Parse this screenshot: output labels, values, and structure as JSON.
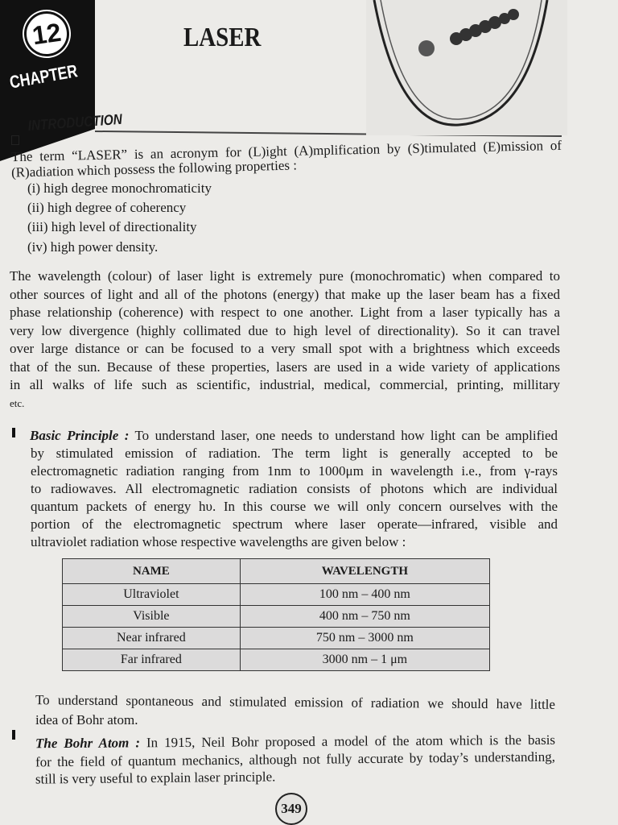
{
  "header": {
    "chapter_number": "12",
    "chapter_label": "CHAPTER",
    "title": "LASER"
  },
  "intro": {
    "heading": "INTRODUCTION",
    "lines": [
      "The term “LASER” is an acronym for (L)ight (A)mplification by (S)timulated (E)mission of",
      "(R)adiation which possess the following properties :"
    ],
    "properties": [
      "(i) high degree monochromaticity",
      "(ii) high degree of coherency",
      "(iii) high level of directionality",
      "(iv) high power density."
    ]
  },
  "para2": [
    "The wavelength (colour) of laser light is extremely pure (monochromatic) when compared to",
    "other sources of light and all of the photons (energy) that make up the laser beam has a fixed",
    "phase relationship (coherence) with respect to one another. Light from a laser typically has a",
    "very low divergence (highly collimated due to high level of directionality). So it can travel",
    "over large distance or can be focused to a very small spot with a brightness which exceeds",
    "that of the sun. Because of these properties, lasers are used in a wide variety of applications",
    "in all walks of life such as scientific, industrial, medical, commercial, printing, millitary",
    "etc."
  ],
  "basic": {
    "label": "Basic Principle :",
    "first": "To understand laser, one needs to understand how light can be amplified",
    "lines": [
      "by stimulated emission of radiation. The term light is generally accepted to be",
      "electromagnetic radiation ranging from 1nm to 1000μm in wavelength i.e., from γ-rays",
      "to radiowaves. All electromagnetic radiation consists of photons which are individual",
      "quantum packets of energy hυ. In this course we will only concern ourselves with the",
      "portion of the electromagnetic spectrum where laser operate—infrared, visible and",
      "ultraviolet radiation whose respective wavelengths are given below :"
    ]
  },
  "table": {
    "headers": [
      "NAME",
      "WAVELENGTH"
    ],
    "rows": [
      [
        "Ultraviolet",
        "100 nm – 400 nm"
      ],
      [
        "Visible",
        "400 nm – 750 nm"
      ],
      [
        "Near infrared",
        "750 nm – 3000 nm"
      ],
      [
        "Far infrared",
        "3000 nm – 1 μm"
      ]
    ]
  },
  "para3": [
    "To understand spontaneous and stimulated emission of radiation we should have little",
    "idea of Bohr atom."
  ],
  "bohr": {
    "label": "The Bohr Atom :",
    "first": "In 1915, Neil Bohr proposed a model of the atom which is the basis",
    "lines": [
      "for the field of quantum mechanics, although not fully accurate by today’s understanding,",
      "still is very useful to explain laser principle."
    ]
  },
  "page_number": "349"
}
